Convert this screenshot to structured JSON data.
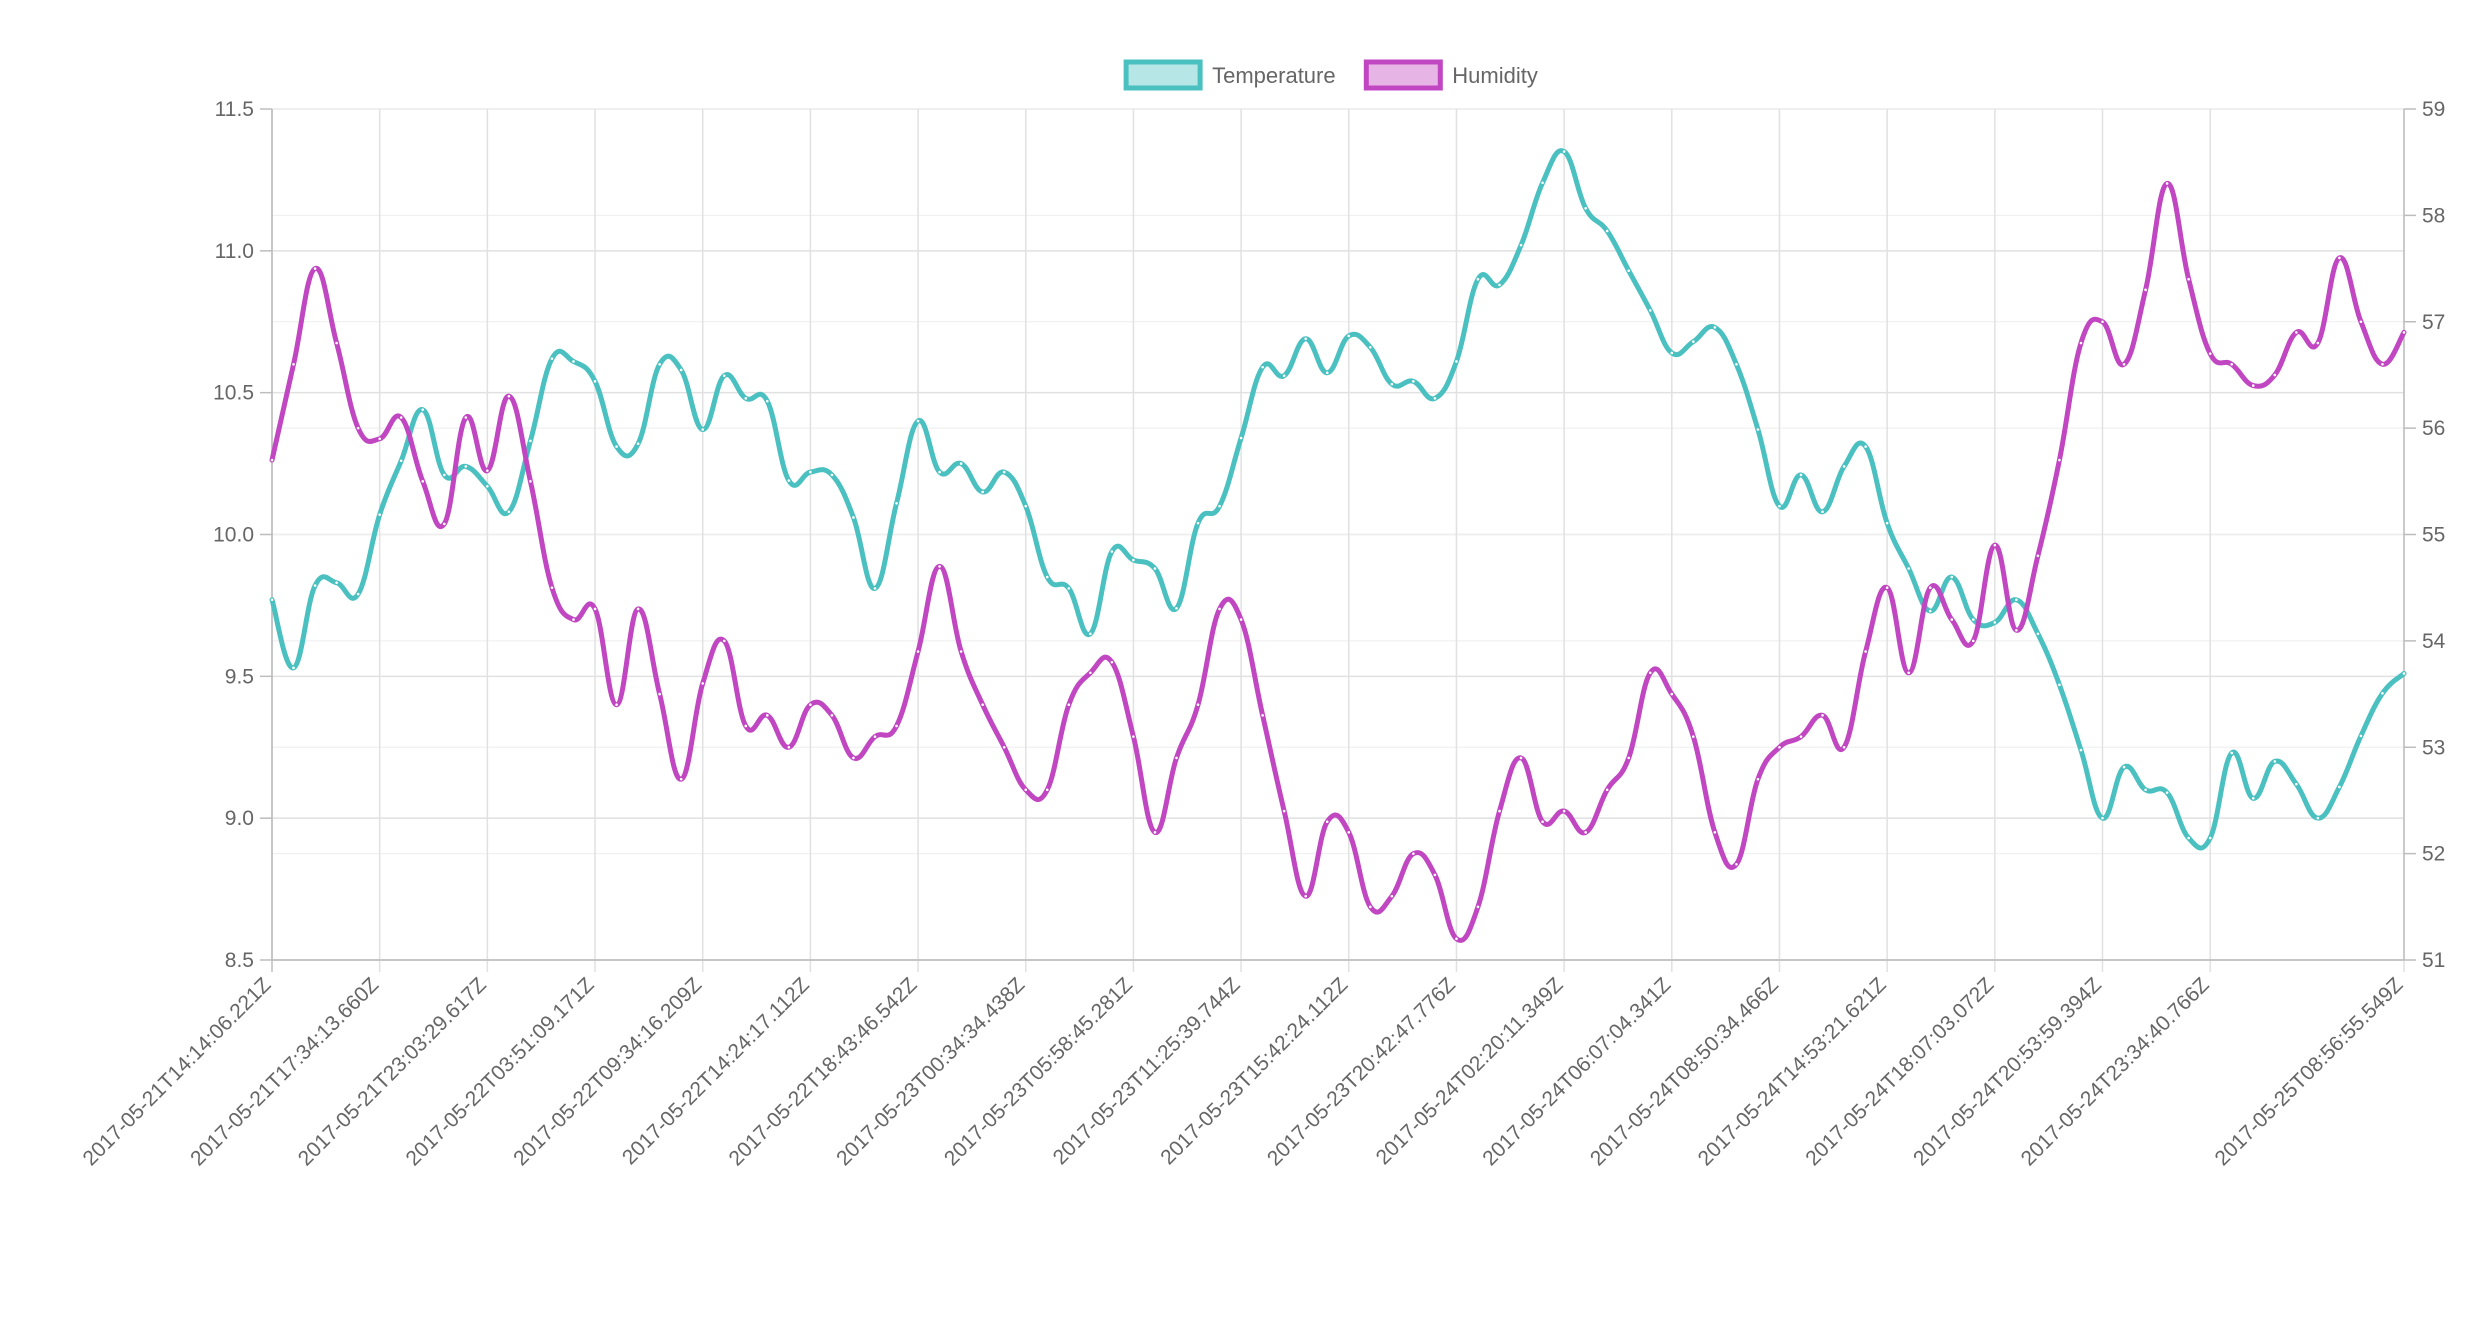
{
  "chart_data": {
    "type": "line",
    "title": "",
    "legend_position": "top-center",
    "grid": true,
    "x_labels": [
      "2017-05-21T14:14:06.221Z",
      "2017-05-21T17:34:13.660Z",
      "2017-05-21T23:03:29.617Z",
      "2017-05-22T03:51:09.171Z",
      "2017-05-22T09:34:16.209Z",
      "2017-05-22T14:24:17.112Z",
      "2017-05-22T18:43:46.542Z",
      "2017-05-23T00:34:34.438Z",
      "2017-05-23T05:58:45.281Z",
      "2017-05-23T11:25:39.744Z",
      "2017-05-23T15:42:24.112Z",
      "2017-05-23T20:42:47.776Z",
      "2017-05-24T02:20:11.349Z",
      "2017-05-24T06:07:04.341Z",
      "2017-05-24T08:50:34.466Z",
      "2017-05-24T14:53:21.621Z",
      "2017-05-24T18:07:03.072Z",
      "2017-05-24T20:53:59.394Z",
      "2017-05-24T23:34:40.766Z",
      "2017-05-25T08:56:55.549Z"
    ],
    "x_label_positions": [
      0,
      5,
      10,
      15,
      20,
      25,
      30,
      35,
      40,
      45,
      50,
      55,
      60,
      65,
      70,
      75,
      80,
      85,
      90,
      99
    ],
    "y_left": {
      "min": 8.5,
      "max": 11.5,
      "ticks": [
        "8.5",
        "9.0",
        "9.5",
        "10.0",
        "10.5",
        "11.0",
        "11.5"
      ]
    },
    "y_right": {
      "min": 51,
      "max": 59,
      "ticks": [
        "51",
        "52",
        "53",
        "54",
        "55",
        "56",
        "57",
        "58",
        "59"
      ]
    },
    "series": [
      {
        "name": "Temperature",
        "axis": "left",
        "color": "#4bc0c0",
        "fill": "rgba(75,192,192,0.4)",
        "values": [
          9.77,
          9.53,
          9.82,
          9.83,
          9.79,
          10.07,
          10.26,
          10.44,
          10.21,
          10.24,
          10.17,
          10.08,
          10.33,
          10.62,
          10.61,
          10.54,
          10.31,
          10.32,
          10.6,
          10.58,
          10.37,
          10.56,
          10.48,
          10.47,
          10.19,
          10.22,
          10.21,
          10.06,
          9.81,
          10.11,
          10.4,
          10.22,
          10.25,
          10.15,
          10.22,
          10.1,
          9.85,
          9.81,
          9.65,
          9.94,
          9.91,
          9.88,
          9.74,
          10.04,
          10.1,
          10.34,
          10.59,
          10.56,
          10.69,
          10.57,
          10.7,
          10.66,
          10.53,
          10.54,
          10.48,
          10.61,
          10.9,
          10.88,
          11.02,
          11.24,
          11.35,
          11.15,
          11.07,
          10.93,
          10.79,
          10.64,
          10.68,
          10.73,
          10.6,
          10.37,
          10.1,
          10.21,
          10.08,
          10.24,
          10.31,
          10.04,
          9.88,
          9.73,
          9.85,
          9.7,
          9.69,
          9.77,
          9.65,
          9.47,
          9.24,
          9.0,
          9.18,
          9.1,
          9.09,
          8.93,
          8.93,
          9.23,
          9.07,
          9.2,
          9.12,
          9.0,
          9.11,
          9.29,
          9.44,
          9.51
        ]
      },
      {
        "name": "Humidity",
        "axis": "right",
        "color": "#c146c1",
        "fill": "rgba(193,70,193,0.4)",
        "values": [
          55.7,
          56.6,
          57.5,
          56.8,
          56.0,
          55.9,
          56.1,
          55.5,
          55.1,
          56.1,
          55.6,
          56.3,
          55.5,
          54.5,
          54.2,
          54.3,
          53.4,
          54.3,
          53.5,
          52.7,
          53.6,
          54.0,
          53.2,
          53.3,
          53.0,
          53.4,
          53.3,
          52.9,
          53.1,
          53.2,
          53.9,
          54.7,
          53.9,
          53.4,
          53.0,
          52.6,
          52.6,
          53.4,
          53.7,
          53.8,
          53.1,
          52.2,
          52.9,
          53.4,
          54.3,
          54.2,
          53.3,
          52.4,
          51.6,
          52.3,
          52.2,
          51.5,
          51.6,
          52.0,
          51.8,
          51.2,
          51.5,
          52.4,
          52.9,
          52.3,
          52.4,
          52.2,
          52.6,
          52.9,
          53.7,
          53.5,
          53.1,
          52.2,
          51.9,
          52.7,
          53.0,
          53.1,
          53.3,
          53.0,
          53.9,
          54.5,
          53.7,
          54.5,
          54.2,
          54.0,
          54.9,
          54.1,
          54.8,
          55.7,
          56.8,
          57.0,
          56.6,
          57.3,
          58.3,
          57.4,
          56.7,
          56.6,
          56.4,
          56.5,
          56.9,
          56.8,
          57.6,
          57.0,
          56.6,
          56.9
        ]
      }
    ]
  }
}
